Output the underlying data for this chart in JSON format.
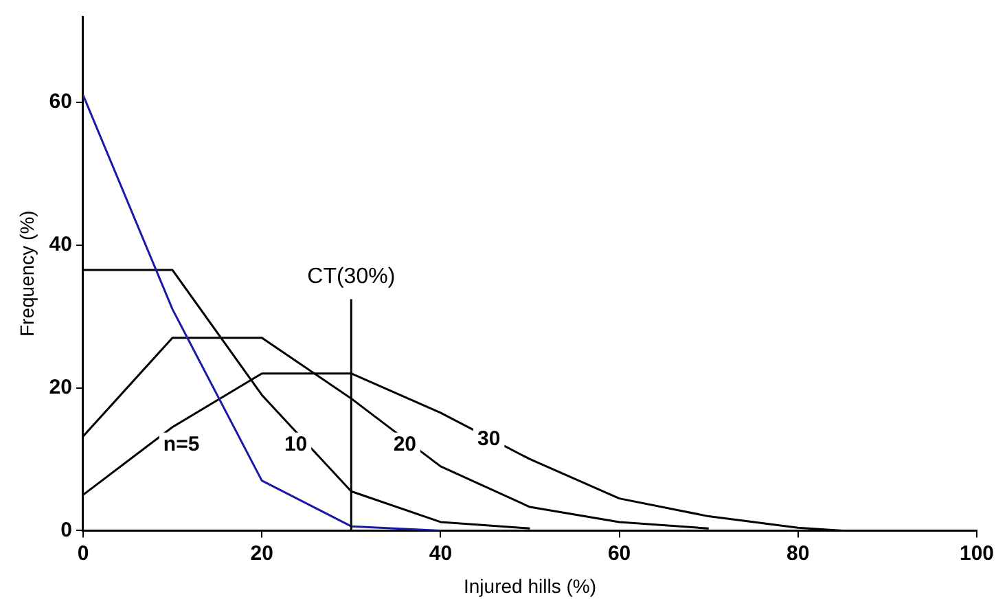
{
  "chart_data": {
    "type": "line",
    "xlabel": "Injured hills (%)",
    "ylabel": "Frequency (%)",
    "xlim": [
      0,
      100
    ],
    "xticks": [
      0,
      20,
      40,
      60,
      80,
      100
    ],
    "ylim": [
      0,
      72
    ],
    "yticks": [
      0,
      20,
      40,
      60
    ],
    "grid": false,
    "legend": false,
    "marker": "none",
    "line_style": "solid",
    "series": [
      {
        "color": "#1a1aa6",
        "x": [
          0,
          10,
          20,
          30,
          40
        ],
        "values": [
          61,
          31,
          7,
          0.6,
          0
        ]
      },
      {
        "color": "#000000",
        "x": [
          0,
          10,
          20,
          30,
          40,
          50
        ],
        "values": [
          36.5,
          36.5,
          19,
          5.5,
          1.2,
          0.3
        ]
      },
      {
        "color": "#000000",
        "x": [
          0,
          10,
          20,
          30,
          40,
          50,
          60,
          70
        ],
        "values": [
          13.2,
          27,
          27,
          18.5,
          9,
          3.3,
          1.2,
          0.3
        ]
      },
      {
        "color": "#000000",
        "x": [
          0,
          10,
          20,
          30,
          40,
          50,
          60,
          70,
          80,
          85
        ],
        "values": [
          5,
          14.5,
          22,
          22,
          16.5,
          10,
          4.5,
          2,
          0.4,
          0
        ]
      }
    ],
    "ref_lines": [
      {
        "axis": "x",
        "value": 30,
        "label": "CT(30%)",
        "color": "#000000"
      }
    ],
    "annotations": [
      {
        "text": "n=5",
        "x": 11,
        "y": 12
      },
      {
        "text": "10",
        "x": 23.8,
        "y": 12
      },
      {
        "text": "20",
        "x": 36,
        "y": 12
      },
      {
        "text": "30",
        "x": 45.4,
        "y": 12.8
      }
    ]
  }
}
